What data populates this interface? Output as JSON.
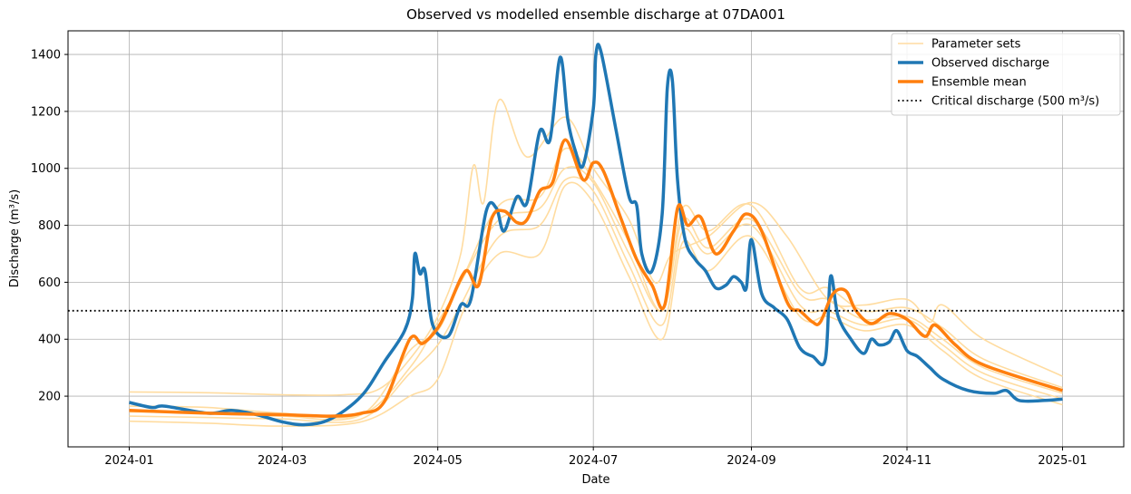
{
  "chart_data": {
    "type": "line",
    "title": "Observed vs modelled ensemble discharge at 07DA001",
    "xlabel": "Date",
    "ylabel": "Discharge (m³/s)",
    "x_type": "date",
    "xlim": [
      "2023-12-08",
      "2025-01-25"
    ],
    "ylim": [
      22,
      1483
    ],
    "x_ticks": [
      {
        "value": "2024-01-01",
        "label": "2024-01"
      },
      {
        "value": "2024-03-01",
        "label": "2024-03"
      },
      {
        "value": "2024-05-01",
        "label": "2024-05"
      },
      {
        "value": "2024-07-01",
        "label": "2024-07"
      },
      {
        "value": "2024-09-01",
        "label": "2024-09"
      },
      {
        "value": "2024-11-01",
        "label": "2024-11"
      },
      {
        "value": "2025-01-01",
        "label": "2025-01"
      }
    ],
    "y_ticks": [
      200,
      400,
      600,
      800,
      1000,
      1200,
      1400
    ],
    "grid": true,
    "legend_position": "top-right",
    "colors": {
      "parameter_sets": "#ffdca0",
      "observed": "#1f77b4",
      "ensemble_mean": "#ff7f0e",
      "critical": "#000000"
    },
    "legend": [
      {
        "label": "Parameter sets",
        "key": "parameter_sets"
      },
      {
        "label": "Observed discharge",
        "key": "observed"
      },
      {
        "label": "Ensemble mean",
        "key": "ensemble_mean"
      },
      {
        "label": "Critical discharge (500 m³/s)",
        "key": "critical"
      }
    ],
    "critical_discharge": 500,
    "series": [
      {
        "name": "Parameter sets",
        "role": "parameter_sets",
        "members": [
          [
            [
              "2024-01-01",
              215
            ],
            [
              "2024-02-01",
              212
            ],
            [
              "2024-03-01",
              205
            ],
            [
              "2024-03-25",
              205
            ],
            [
              "2024-04-08",
              225
            ],
            [
              "2024-04-20",
              330
            ],
            [
              "2024-05-01",
              480
            ],
            [
              "2024-05-10",
              700
            ],
            [
              "2024-05-15",
              1010
            ],
            [
              "2024-05-19",
              880
            ],
            [
              "2024-05-25",
              1240
            ],
            [
              "2024-06-05",
              1040
            ],
            [
              "2024-06-20",
              1180
            ],
            [
              "2024-07-01",
              1000
            ],
            [
              "2024-07-15",
              820
            ],
            [
              "2024-07-25",
              600
            ],
            [
              "2024-08-01",
              700
            ],
            [
              "2024-08-15",
              760
            ],
            [
              "2024-09-01",
              880
            ],
            [
              "2024-09-15",
              760
            ],
            [
              "2024-10-01",
              540
            ],
            [
              "2024-10-15",
              520
            ],
            [
              "2024-11-01",
              540
            ],
            [
              "2024-11-10",
              460
            ],
            [
              "2024-11-15",
              520
            ],
            [
              "2024-12-01",
              400
            ],
            [
              "2025-01-01",
              270
            ]
          ],
          [
            [
              "2024-01-01",
              165
            ],
            [
              "2024-02-01",
              160
            ],
            [
              "2024-03-01",
              140
            ],
            [
              "2024-04-01",
              135
            ],
            [
              "2024-04-20",
              300
            ],
            [
              "2024-05-01",
              460
            ],
            [
              "2024-05-10",
              600
            ],
            [
              "2024-05-25",
              870
            ],
            [
              "2024-06-10",
              900
            ],
            [
              "2024-06-20",
              1070
            ],
            [
              "2024-07-01",
              960
            ],
            [
              "2024-07-15",
              740
            ],
            [
              "2024-07-28",
              500
            ],
            [
              "2024-08-05",
              860
            ],
            [
              "2024-08-15",
              780
            ],
            [
              "2024-09-01",
              870
            ],
            [
              "2024-09-20",
              580
            ],
            [
              "2024-10-01",
              580
            ],
            [
              "2024-10-15",
              500
            ],
            [
              "2024-11-01",
              510
            ],
            [
              "2024-11-15",
              440
            ],
            [
              "2024-12-01",
              330
            ],
            [
              "2025-01-01",
              230
            ]
          ],
          [
            [
              "2024-01-01",
              145
            ],
            [
              "2024-02-01",
              140
            ],
            [
              "2024-03-01",
              130
            ],
            [
              "2024-04-01",
              135
            ],
            [
              "2024-04-20",
              360
            ],
            [
              "2024-05-01",
              430
            ],
            [
              "2024-05-10",
              600
            ],
            [
              "2024-05-25",
              820
            ],
            [
              "2024-06-10",
              860
            ],
            [
              "2024-06-20",
              1000
            ],
            [
              "2024-07-01",
              950
            ],
            [
              "2024-07-15",
              700
            ],
            [
              "2024-07-28",
              500
            ],
            [
              "2024-08-05",
              820
            ],
            [
              "2024-08-15",
              720
            ],
            [
              "2024-09-01",
              820
            ],
            [
              "2024-09-20",
              560
            ],
            [
              "2024-10-01",
              540
            ],
            [
              "2024-10-15",
              470
            ],
            [
              "2024-11-01",
              480
            ],
            [
              "2024-11-15",
              400
            ],
            [
              "2024-12-01",
              300
            ],
            [
              "2025-01-01",
              210
            ]
          ],
          [
            [
              "2024-01-01",
              130
            ],
            [
              "2024-02-01",
              125
            ],
            [
              "2024-03-01",
              120
            ],
            [
              "2024-04-01",
              120
            ],
            [
              "2024-04-20",
              280
            ],
            [
              "2024-05-01",
              380
            ],
            [
              "2024-05-10",
              520
            ],
            [
              "2024-05-25",
              760
            ],
            [
              "2024-06-10",
              800
            ],
            [
              "2024-06-20",
              960
            ],
            [
              "2024-07-01",
              920
            ],
            [
              "2024-07-15",
              660
            ],
            [
              "2024-07-28",
              450
            ],
            [
              "2024-08-05",
              780
            ],
            [
              "2024-08-15",
              700
            ],
            [
              "2024-09-01",
              800
            ],
            [
              "2024-09-20",
              520
            ],
            [
              "2024-10-01",
              500
            ],
            [
              "2024-10-15",
              450
            ],
            [
              "2024-11-01",
              470
            ],
            [
              "2024-11-15",
              380
            ],
            [
              "2024-12-01",
              280
            ],
            [
              "2025-01-01",
              190
            ]
          ],
          [
            [
              "2024-01-01",
              112
            ],
            [
              "2024-02-01",
              105
            ],
            [
              "2024-03-01",
              95
            ],
            [
              "2024-04-01",
              110
            ],
            [
              "2024-04-20",
              200
            ],
            [
              "2024-05-01",
              260
            ],
            [
              "2024-05-12",
              520
            ],
            [
              "2024-05-25",
              700
            ],
            [
              "2024-06-10",
              700
            ],
            [
              "2024-06-20",
              940
            ],
            [
              "2024-07-01",
              880
            ],
            [
              "2024-07-15",
              620
            ],
            [
              "2024-07-28",
              400
            ],
            [
              "2024-08-05",
              740
            ],
            [
              "2024-08-15",
              640
            ],
            [
              "2024-09-01",
              760
            ],
            [
              "2024-09-20",
              480
            ],
            [
              "2024-10-01",
              480
            ],
            [
              "2024-10-15",
              430
            ],
            [
              "2024-11-01",
              450
            ],
            [
              "2024-11-15",
              360
            ],
            [
              "2024-12-01",
              260
            ],
            [
              "2025-01-01",
              170
            ]
          ]
        ]
      },
      {
        "name": "Observed discharge",
        "role": "observed",
        "points": [
          [
            "2024-01-01",
            178
          ],
          [
            "2024-01-10",
            160
          ],
          [
            "2024-01-15",
            165
          ],
          [
            "2024-02-01",
            140
          ],
          [
            "2024-02-10",
            150
          ],
          [
            "2024-02-20",
            135
          ],
          [
            "2024-03-01",
            110
          ],
          [
            "2024-03-10",
            100
          ],
          [
            "2024-03-20",
            120
          ],
          [
            "2024-04-01",
            200
          ],
          [
            "2024-04-10",
            320
          ],
          [
            "2024-04-18",
            430
          ],
          [
            "2024-04-21",
            540
          ],
          [
            "2024-04-22",
            700
          ],
          [
            "2024-04-24",
            630
          ],
          [
            "2024-04-26",
            640
          ],
          [
            "2024-04-29",
            450
          ],
          [
            "2024-05-05",
            410
          ],
          [
            "2024-05-10",
            520
          ],
          [
            "2024-05-14",
            540
          ],
          [
            "2024-05-20",
            850
          ],
          [
            "2024-05-24",
            860
          ],
          [
            "2024-05-27",
            780
          ],
          [
            "2024-06-01",
            900
          ],
          [
            "2024-06-05",
            880
          ],
          [
            "2024-06-10",
            1130
          ],
          [
            "2024-06-14",
            1100
          ],
          [
            "2024-06-18",
            1390
          ],
          [
            "2024-06-21",
            1170
          ],
          [
            "2024-06-24",
            1060
          ],
          [
            "2024-06-27",
            1010
          ],
          [
            "2024-07-01",
            1210
          ],
          [
            "2024-07-02",
            1400
          ],
          [
            "2024-07-04",
            1410
          ],
          [
            "2024-07-10",
            1130
          ],
          [
            "2024-07-15",
            900
          ],
          [
            "2024-07-18",
            870
          ],
          [
            "2024-07-20",
            700
          ],
          [
            "2024-07-24",
            640
          ],
          [
            "2024-07-28",
            840
          ],
          [
            "2024-07-30",
            1280
          ],
          [
            "2024-08-01",
            1310
          ],
          [
            "2024-08-03",
            960
          ],
          [
            "2024-08-06",
            750
          ],
          [
            "2024-08-10",
            680
          ],
          [
            "2024-08-14",
            640
          ],
          [
            "2024-08-18",
            580
          ],
          [
            "2024-08-22",
            590
          ],
          [
            "2024-08-25",
            620
          ],
          [
            "2024-08-28",
            600
          ],
          [
            "2024-08-30",
            580
          ],
          [
            "2024-09-01",
            750
          ],
          [
            "2024-09-05",
            560
          ],
          [
            "2024-09-10",
            510
          ],
          [
            "2024-09-15",
            470
          ],
          [
            "2024-09-20",
            370
          ],
          [
            "2024-09-25",
            340
          ],
          [
            "2024-09-30",
            330
          ],
          [
            "2024-10-02",
            620
          ],
          [
            "2024-10-05",
            480
          ],
          [
            "2024-10-10",
            400
          ],
          [
            "2024-10-15",
            350
          ],
          [
            "2024-10-18",
            400
          ],
          [
            "2024-10-21",
            380
          ],
          [
            "2024-10-25",
            390
          ],
          [
            "2024-10-28",
            430
          ],
          [
            "2024-11-01",
            360
          ],
          [
            "2024-11-05",
            340
          ],
          [
            "2024-11-10",
            300
          ],
          [
            "2024-11-15",
            260
          ],
          [
            "2024-11-25",
            220
          ],
          [
            "2024-12-05",
            210
          ],
          [
            "2024-12-10",
            220
          ],
          [
            "2024-12-15",
            185
          ],
          [
            "2024-12-25",
            185
          ],
          [
            "2025-01-01",
            190
          ]
        ]
      },
      {
        "name": "Ensemble mean",
        "role": "ensemble_mean",
        "points": [
          [
            "2024-01-01",
            150
          ],
          [
            "2024-02-01",
            140
          ],
          [
            "2024-03-01",
            135
          ],
          [
            "2024-03-20",
            130
          ],
          [
            "2024-04-01",
            140
          ],
          [
            "2024-04-10",
            180
          ],
          [
            "2024-04-20",
            400
          ],
          [
            "2024-04-25",
            385
          ],
          [
            "2024-05-01",
            440
          ],
          [
            "2024-05-05",
            510
          ],
          [
            "2024-05-12",
            640
          ],
          [
            "2024-05-17",
            590
          ],
          [
            "2024-05-22",
            820
          ],
          [
            "2024-05-27",
            850
          ],
          [
            "2024-06-01",
            810
          ],
          [
            "2024-06-05",
            820
          ],
          [
            "2024-06-10",
            920
          ],
          [
            "2024-06-15",
            950
          ],
          [
            "2024-06-20",
            1100
          ],
          [
            "2024-06-27",
            960
          ],
          [
            "2024-07-01",
            1020
          ],
          [
            "2024-07-05",
            990
          ],
          [
            "2024-07-12",
            820
          ],
          [
            "2024-07-18",
            680
          ],
          [
            "2024-07-24",
            590
          ],
          [
            "2024-07-29",
            520
          ],
          [
            "2024-08-03",
            860
          ],
          [
            "2024-08-07",
            800
          ],
          [
            "2024-08-12",
            830
          ],
          [
            "2024-08-18",
            700
          ],
          [
            "2024-08-25",
            780
          ],
          [
            "2024-08-30",
            840
          ],
          [
            "2024-09-05",
            780
          ],
          [
            "2024-09-15",
            530
          ],
          [
            "2024-09-20",
            500
          ],
          [
            "2024-09-25",
            460
          ],
          [
            "2024-09-28",
            460
          ],
          [
            "2024-10-03",
            560
          ],
          [
            "2024-10-08",
            570
          ],
          [
            "2024-10-12",
            500
          ],
          [
            "2024-10-18",
            455
          ],
          [
            "2024-10-25",
            490
          ],
          [
            "2024-11-01",
            470
          ],
          [
            "2024-11-08",
            410
          ],
          [
            "2024-11-12",
            450
          ],
          [
            "2024-11-20",
            380
          ],
          [
            "2024-12-01",
            310
          ],
          [
            "2025-01-01",
            220
          ]
        ]
      }
    ]
  }
}
